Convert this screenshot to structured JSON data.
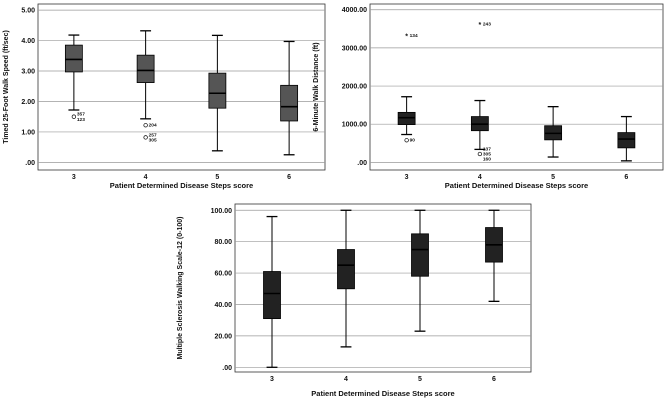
{
  "chart_data": [
    {
      "type": "boxplot",
      "title": "",
      "xlabel": "Patient Determined Disease Steps score",
      "ylabel": "Timed 25-Foot Walk Speed (ft/sec)",
      "categories": [
        "3",
        "4",
        "5",
        "6"
      ],
      "yticks": [
        ".00",
        "1.00",
        "2.00",
        "3.00",
        "4.00",
        "5.00"
      ],
      "ylim": [
        -0.25,
        5.2
      ],
      "box_color": "#555555",
      "boxes": [
        {
          "min": 1.72,
          "q1": 2.97,
          "median": 3.38,
          "q3": 3.85,
          "max": 4.18
        },
        {
          "min": 1.43,
          "q1": 2.62,
          "median": 3.02,
          "q3": 3.52,
          "max": 4.32
        },
        {
          "min": 0.38,
          "q1": 1.78,
          "median": 2.27,
          "q3": 2.93,
          "max": 4.17
        },
        {
          "min": 0.25,
          "q1": 1.36,
          "median": 1.83,
          "q3": 2.53,
          "max": 3.97
        }
      ],
      "outliers": [
        {
          "cat": 0,
          "value": 1.5,
          "marker": "o",
          "labels": [
            "357",
            "123"
          ]
        },
        {
          "cat": 1,
          "value": 1.22,
          "marker": "o",
          "labels": [
            "204"
          ]
        },
        {
          "cat": 1,
          "value": 0.82,
          "marker": "o",
          "labels": [
            "257",
            "305"
          ]
        }
      ]
    },
    {
      "type": "boxplot",
      "title": "",
      "xlabel": "Patient Determined Disease Steps score",
      "ylabel": "6-Minute Walk Distance (ft)",
      "categories": [
        "3",
        "4",
        "5",
        "6"
      ],
      "yticks": [
        ".00",
        "1000.00",
        "2000.00",
        "3000.00",
        "4000.00"
      ],
      "ylim": [
        -200,
        4150
      ],
      "box_color": "#222222",
      "boxes": [
        {
          "min": 730,
          "q1": 990,
          "median": 1170,
          "q3": 1310,
          "max": 1720
        },
        {
          "min": 340,
          "q1": 830,
          "median": 1000,
          "q3": 1200,
          "max": 1620
        },
        {
          "min": 140,
          "q1": 590,
          "median": 760,
          "q3": 960,
          "max": 1460
        },
        {
          "min": 40,
          "q1": 380,
          "median": 610,
          "q3": 780,
          "max": 1200
        }
      ],
      "outliers": [
        {
          "cat": 0,
          "value": 3330,
          "marker": "*",
          "labels": [
            "134"
          ]
        },
        {
          "cat": 1,
          "value": 3620,
          "marker": "*",
          "labels": [
            "243"
          ]
        },
        {
          "cat": 0,
          "value": 580,
          "marker": "o",
          "labels": [
            "90"
          ]
        },
        {
          "cat": 1,
          "value": 220,
          "marker": "o",
          "labels": [
            "137",
            "305",
            "160"
          ]
        }
      ]
    },
    {
      "type": "boxplot",
      "title": "",
      "xlabel": "Patient Determined Disease Steps score",
      "ylabel": "Multiple Sclerosis Walking Scale-12 (0-100)",
      "categories": [
        "3",
        "4",
        "5",
        "6"
      ],
      "yticks": [
        ".00",
        "20.00",
        "40.00",
        "60.00",
        "80.00",
        "100.00"
      ],
      "ylim": [
        -3,
        104
      ],
      "box_color": "#222222",
      "boxes": [
        {
          "min": 0,
          "q1": 31,
          "median": 47,
          "q3": 61,
          "max": 96
        },
        {
          "min": 13,
          "q1": 50,
          "median": 65,
          "q3": 75,
          "max": 100
        },
        {
          "min": 23,
          "q1": 58,
          "median": 75,
          "q3": 85,
          "max": 100
        },
        {
          "min": 42,
          "q1": 67,
          "median": 78,
          "q3": 89,
          "max": 100
        }
      ],
      "outliers": []
    }
  ]
}
